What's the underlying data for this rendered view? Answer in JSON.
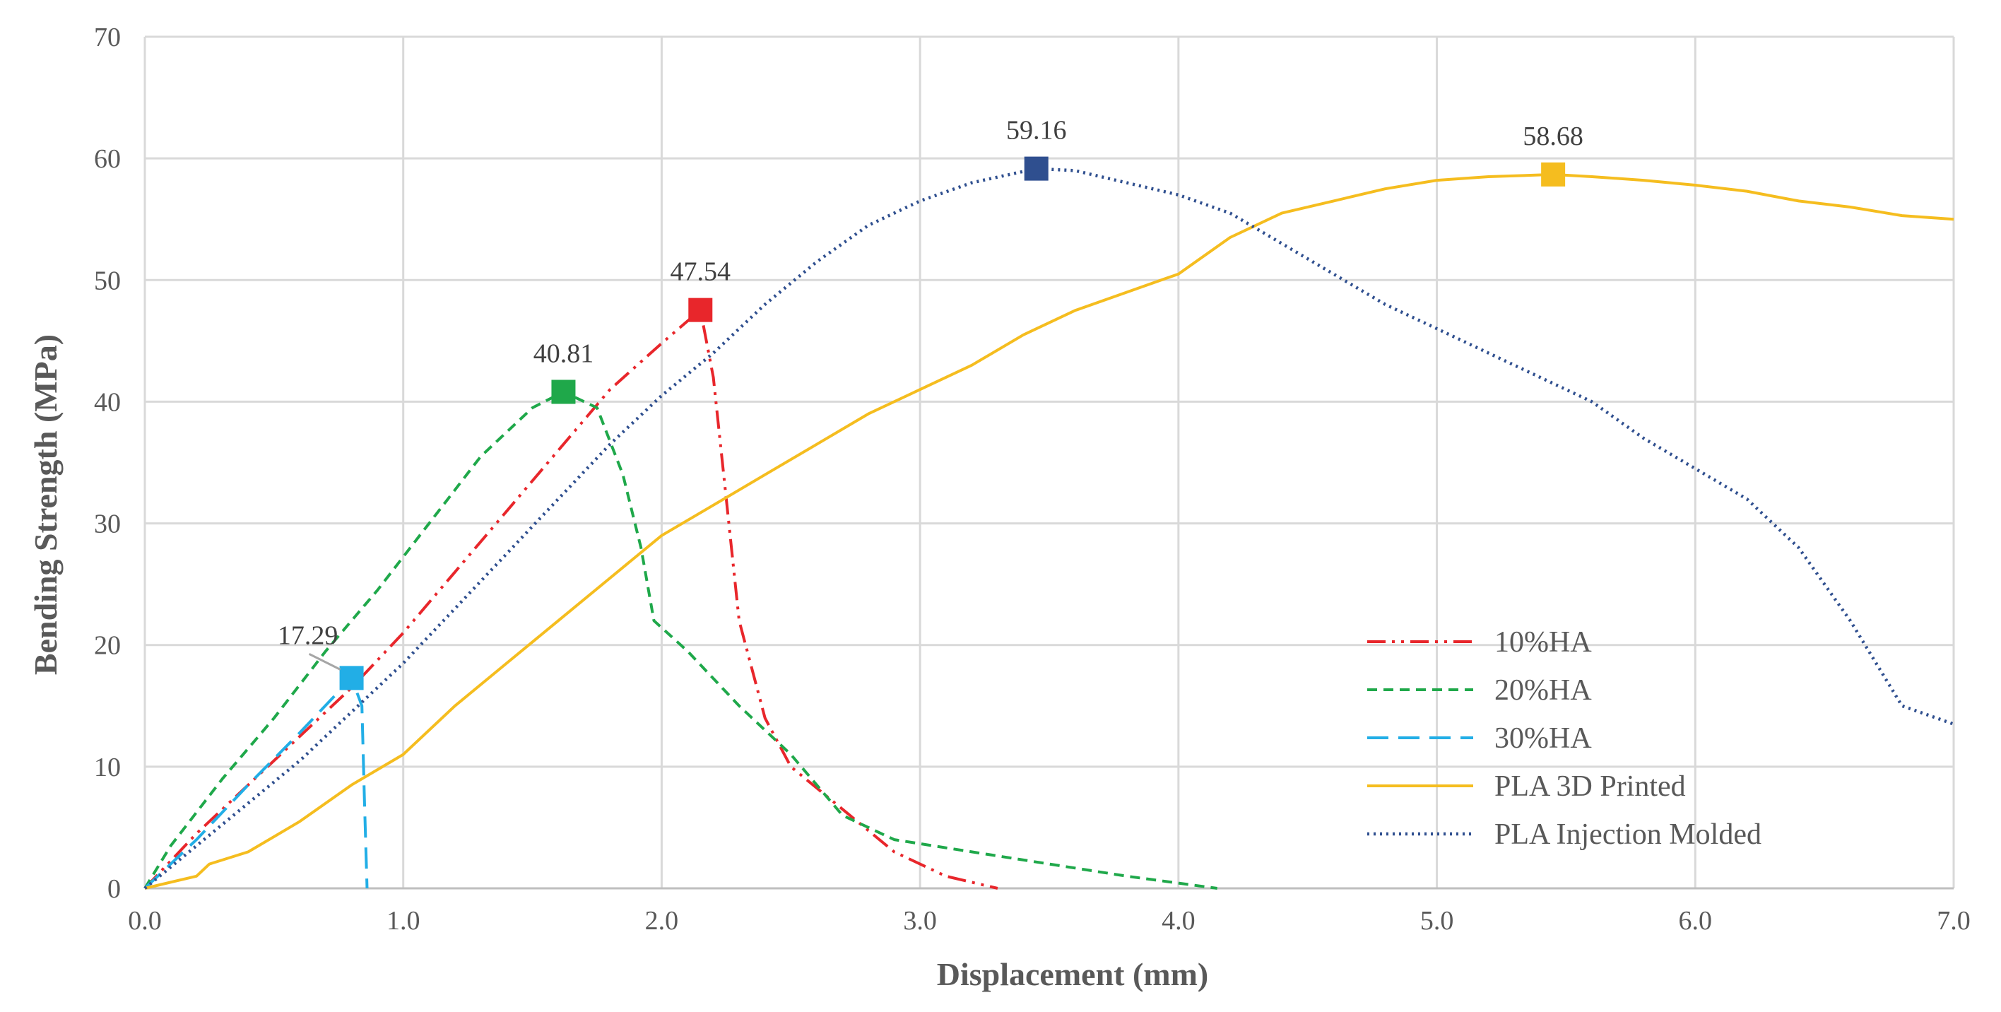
{
  "chart_data": {
    "type": "line",
    "title": "",
    "xlabel": "Displacement (mm)",
    "ylabel": "Bending Strength (MPa)",
    "xlim": [
      0,
      7
    ],
    "ylim": [
      0,
      70
    ],
    "grid": true,
    "legend_position": "bottom-right",
    "x_ticks": [
      "0.0",
      "1.0",
      "2.0",
      "3.0",
      "4.0",
      "5.0",
      "6.0",
      "7.0"
    ],
    "y_ticks": [
      "0",
      "10",
      "20",
      "30",
      "40",
      "50",
      "60",
      "70"
    ],
    "series": [
      {
        "name": "10%HA",
        "color": "#e8262b",
        "dash": "dashdotdot",
        "peak": {
          "x": 2.15,
          "y": 47.54,
          "label": "47.54"
        },
        "points": [
          [
            0,
            0
          ],
          [
            0.2,
            4.5
          ],
          [
            0.4,
            8.5
          ],
          [
            0.6,
            12.5
          ],
          [
            0.8,
            16.5
          ],
          [
            1.0,
            21
          ],
          [
            1.2,
            26
          ],
          [
            1.4,
            31
          ],
          [
            1.6,
            36
          ],
          [
            1.8,
            41
          ],
          [
            2.0,
            44.8
          ],
          [
            2.15,
            47.54
          ],
          [
            2.2,
            42
          ],
          [
            2.25,
            32
          ],
          [
            2.3,
            22
          ],
          [
            2.4,
            14
          ],
          [
            2.5,
            10
          ],
          [
            2.7,
            6.5
          ],
          [
            2.9,
            3
          ],
          [
            3.1,
            1
          ],
          [
            3.3,
            0
          ]
        ]
      },
      {
        "name": "20%HA",
        "color": "#1fa84a",
        "dash": "dash",
        "peak": {
          "x": 1.62,
          "y": 40.81,
          "label": "40.81"
        },
        "points": [
          [
            0,
            0
          ],
          [
            0.1,
            3.5
          ],
          [
            0.3,
            9
          ],
          [
            0.5,
            14
          ],
          [
            0.7,
            19.5
          ],
          [
            0.9,
            24.5
          ],
          [
            1.1,
            30
          ],
          [
            1.3,
            35.5
          ],
          [
            1.5,
            39.5
          ],
          [
            1.62,
            40.81
          ],
          [
            1.75,
            39.5
          ],
          [
            1.85,
            34
          ],
          [
            1.92,
            28
          ],
          [
            1.97,
            22
          ],
          [
            2.1,
            19.5
          ],
          [
            2.3,
            15
          ],
          [
            2.5,
            11
          ],
          [
            2.7,
            6
          ],
          [
            2.9,
            4
          ],
          [
            3.2,
            3
          ],
          [
            3.5,
            2
          ],
          [
            3.8,
            1
          ],
          [
            4.15,
            0
          ]
        ]
      },
      {
        "name": "30%HA",
        "color": "#22aee6",
        "dash": "longdash",
        "peak": {
          "x": 0.8,
          "y": 17.29,
          "label": "17.29"
        },
        "points": [
          [
            0,
            0
          ],
          [
            0.2,
            4
          ],
          [
            0.4,
            8.5
          ],
          [
            0.6,
            12.8
          ],
          [
            0.8,
            17.29
          ],
          [
            0.84,
            15
          ],
          [
            0.85,
            7
          ],
          [
            0.86,
            0
          ]
        ]
      },
      {
        "name": "PLA 3D Printed",
        "color": "#f5bd1f",
        "dash": "solid",
        "peak": {
          "x": 5.45,
          "y": 58.68,
          "label": "58.68"
        },
        "points": [
          [
            0,
            0
          ],
          [
            0.2,
            1
          ],
          [
            0.25,
            2
          ],
          [
            0.4,
            3
          ],
          [
            0.6,
            5.5
          ],
          [
            0.8,
            8.5
          ],
          [
            1.0,
            11
          ],
          [
            1.2,
            15
          ],
          [
            1.4,
            18.5
          ],
          [
            1.6,
            22
          ],
          [
            1.8,
            25.5
          ],
          [
            2.0,
            29
          ],
          [
            2.2,
            31.5
          ],
          [
            2.4,
            34
          ],
          [
            2.6,
            36.5
          ],
          [
            2.8,
            39
          ],
          [
            3.0,
            41
          ],
          [
            3.2,
            43
          ],
          [
            3.4,
            45.5
          ],
          [
            3.6,
            47.5
          ],
          [
            3.8,
            49
          ],
          [
            4.0,
            50.5
          ],
          [
            4.2,
            53.5
          ],
          [
            4.4,
            55.5
          ],
          [
            4.6,
            56.5
          ],
          [
            4.8,
            57.5
          ],
          [
            5.0,
            58.2
          ],
          [
            5.2,
            58.5
          ],
          [
            5.45,
            58.68
          ],
          [
            5.6,
            58.5
          ],
          [
            5.8,
            58.2
          ],
          [
            6.0,
            57.8
          ],
          [
            6.2,
            57.3
          ],
          [
            6.4,
            56.5
          ],
          [
            6.6,
            56
          ],
          [
            6.8,
            55.3
          ],
          [
            7.0,
            55
          ]
        ]
      },
      {
        "name": "PLA Injection Molded",
        "color": "#2f4f8f",
        "dash": "dot",
        "peak": {
          "x": 3.45,
          "y": 59.16,
          "label": "59.16"
        },
        "points": [
          [
            0,
            0
          ],
          [
            0.2,
            3.5
          ],
          [
            0.4,
            7
          ],
          [
            0.6,
            10.5
          ],
          [
            0.8,
            14.5
          ],
          [
            1.0,
            18.5
          ],
          [
            1.2,
            23
          ],
          [
            1.4,
            27.5
          ],
          [
            1.6,
            32
          ],
          [
            1.8,
            36.5
          ],
          [
            2.0,
            40.5
          ],
          [
            2.2,
            44
          ],
          [
            2.4,
            48
          ],
          [
            2.6,
            51.5
          ],
          [
            2.8,
            54.5
          ],
          [
            3.0,
            56.5
          ],
          [
            3.2,
            58
          ],
          [
            3.45,
            59.16
          ],
          [
            3.6,
            59
          ],
          [
            3.8,
            58
          ],
          [
            4.0,
            57
          ],
          [
            4.2,
            55.5
          ],
          [
            4.4,
            53
          ],
          [
            4.6,
            50.5
          ],
          [
            4.8,
            48
          ],
          [
            5.0,
            46
          ],
          [
            5.2,
            44
          ],
          [
            5.4,
            42
          ],
          [
            5.6,
            40
          ],
          [
            5.8,
            37
          ],
          [
            6.0,
            34.5
          ],
          [
            6.2,
            32
          ],
          [
            6.4,
            28
          ],
          [
            6.6,
            22
          ],
          [
            6.8,
            15
          ],
          [
            7.0,
            13.5
          ]
        ]
      }
    ]
  }
}
